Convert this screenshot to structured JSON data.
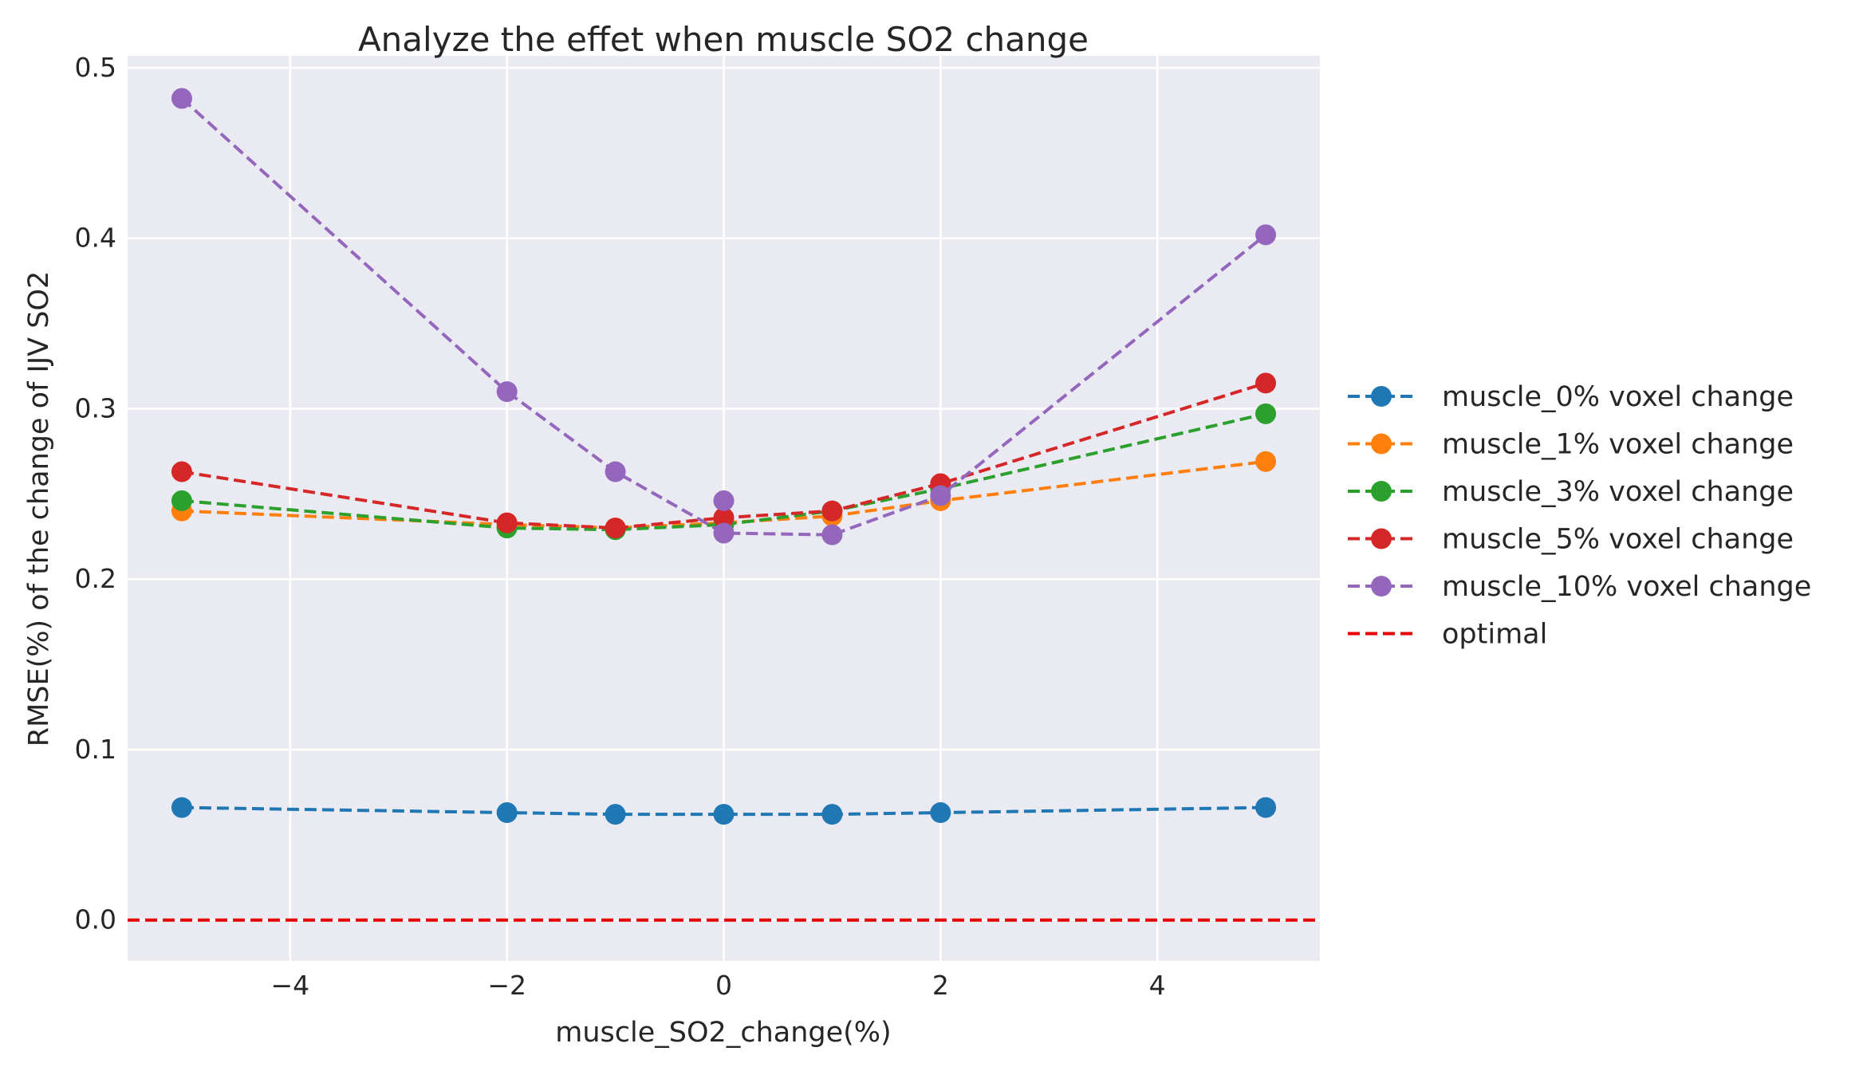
{
  "chart_data": {
    "type": "line",
    "title": "Analyze the effet when muscle SO2 change",
    "xlabel": "muscle_SO2_change(%)",
    "ylabel": "RMSE(%) of the change of IJV SO2",
    "xlim": [
      -5.5,
      5.5
    ],
    "ylim": [
      -0.024,
      0.507
    ],
    "xticks": [
      -4,
      -2,
      0,
      2,
      4
    ],
    "xtick_labels": [
      "−4",
      "−2",
      "0",
      "2",
      "4"
    ],
    "yticks": [
      0.0,
      0.1,
      0.2,
      0.3,
      0.4,
      0.5
    ],
    "ytick_labels": [
      "0.0",
      "0.1",
      "0.2",
      "0.3",
      "0.4",
      "0.5"
    ],
    "grid": true,
    "legend_position": "right-outside",
    "x": [
      -5,
      -2,
      -1,
      0,
      1,
      2,
      5
    ],
    "series": [
      {
        "name": "muscle_0% voxel change",
        "color": "#1f77b4",
        "values": [
          0.066,
          0.063,
          0.062,
          0.062,
          0.062,
          0.063,
          0.066
        ]
      },
      {
        "name": "muscle_1% voxel change",
        "color": "#ff7f0e",
        "values": [
          0.24,
          0.232,
          0.23,
          0.233,
          0.237,
          0.246,
          0.269
        ]
      },
      {
        "name": "muscle_3% voxel change",
        "color": "#2ca02c",
        "values": [
          0.246,
          0.23,
          0.229,
          0.232,
          0.24,
          0.253,
          0.297
        ]
      },
      {
        "name": "muscle_5% voxel change",
        "color": "#d62728",
        "values": [
          0.263,
          0.233,
          0.23,
          0.236,
          0.24,
          0.256,
          0.315
        ]
      },
      {
        "name": "muscle_10% voxel change",
        "color": "#9467bd",
        "values": [
          0.482,
          0.31,
          0.263,
          0.227,
          0.226,
          0.249,
          0.402
        ],
        "extra_point": {
          "x": 0,
          "y": 0.246
        }
      }
    ],
    "reference_line": {
      "name": "optimal",
      "color": "#e60000",
      "y": 0.0
    }
  }
}
